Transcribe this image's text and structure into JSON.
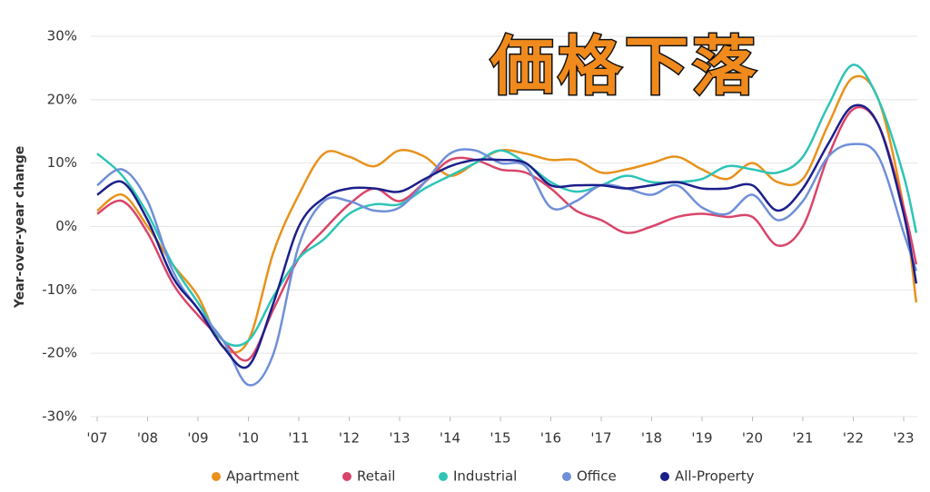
{
  "chart_data": {
    "type": "line",
    "annotation": "価格下落",
    "y_label": "Year-over-year change",
    "x": [
      2007,
      2007.5,
      2008,
      2008.5,
      2009,
      2009.5,
      2010,
      2010.5,
      2011,
      2011.5,
      2012,
      2012.5,
      2013,
      2013.5,
      2014,
      2014.5,
      2015,
      2015.5,
      2016,
      2016.5,
      2017,
      2017.5,
      2018,
      2018.5,
      2019,
      2019.5,
      2020,
      2020.5,
      2021,
      2021.5,
      2022,
      2022.5,
      2023,
      2023.25
    ],
    "series": [
      {
        "name": "Apartment",
        "color": "#e8921c",
        "values": [
          2.5,
          5,
          0,
          -6,
          -11,
          -19,
          -18,
          -4,
          5,
          11.5,
          11,
          9.5,
          12,
          11,
          8,
          10,
          12,
          11.5,
          10.5,
          10.5,
          8.5,
          9,
          10,
          11,
          9,
          7.5,
          10,
          7,
          7.5,
          16,
          23.5,
          20,
          3,
          -12
        ]
      },
      {
        "name": "Retail",
        "color": "#d9456a",
        "values": [
          2,
          4,
          -1,
          -9,
          -14,
          -18,
          -21,
          -13,
          -5,
          -0.5,
          3.5,
          6,
          4,
          7,
          10.5,
          10.5,
          9,
          8.5,
          6,
          2.5,
          1,
          -1,
          0,
          1.5,
          2,
          1.5,
          1.5,
          -3,
          0,
          11,
          18.5,
          16,
          3,
          -6
        ]
      },
      {
        "name": "Industrial",
        "color": "#2ec4b6",
        "values": [
          11.5,
          8,
          2,
          -6,
          -12,
          -18,
          -18,
          -11,
          -5,
          -2,
          2,
          3.5,
          3.5,
          6,
          8,
          10,
          12,
          10,
          7,
          5.5,
          6.5,
          8,
          7,
          7,
          7.5,
          9.5,
          9,
          8.5,
          11,
          19,
          25.5,
          20,
          8,
          -1
        ]
      },
      {
        "name": "Office",
        "color": "#6f8fd8",
        "values": [
          6.5,
          9,
          4,
          -7,
          -13,
          -18,
          -25,
          -20,
          -3,
          4,
          4,
          2.5,
          3,
          7,
          11.5,
          12,
          10,
          9.5,
          3,
          4,
          6.5,
          6,
          5,
          6.5,
          3,
          2,
          5,
          1,
          4,
          11,
          13,
          11,
          -1,
          -7
        ]
      },
      {
        "name": "All-Property",
        "color": "#1b1f8a",
        "values": [
          5,
          7,
          1,
          -8,
          -13,
          -19,
          -22,
          -12,
          0,
          4.5,
          6,
          6,
          5.5,
          7.5,
          9.5,
          10.5,
          10.5,
          10,
          6.5,
          6.5,
          6.5,
          6,
          6.5,
          7,
          6,
          6,
          6.5,
          2.5,
          6,
          13,
          19,
          16,
          2,
          -9
        ]
      }
    ],
    "xlim": [
      2007,
      2023.27
    ],
    "xticks": [
      {
        "value": 2007,
        "label": "'07"
      },
      {
        "value": 2008,
        "label": "'08"
      },
      {
        "value": 2009,
        "label": "'09"
      },
      {
        "value": 2010,
        "label": "'10"
      },
      {
        "value": 2011,
        "label": "'11"
      },
      {
        "value": 2012,
        "label": "'12"
      },
      {
        "value": 2013,
        "label": "'13"
      },
      {
        "value": 2014,
        "label": "'14"
      },
      {
        "value": 2015,
        "label": "'15"
      },
      {
        "value": 2016,
        "label": "'16"
      },
      {
        "value": 2017,
        "label": "'17"
      },
      {
        "value": 2018,
        "label": "'18"
      },
      {
        "value": 2019,
        "label": "'19"
      },
      {
        "value": 2020,
        "label": "'20"
      },
      {
        "value": 2021,
        "label": "'21"
      },
      {
        "value": 2022,
        "label": "'22"
      },
      {
        "value": 2023,
        "label": "'23"
      }
    ],
    "ylim": [
      -30,
      30
    ],
    "yticks": [
      {
        "value": -30,
        "label": "-30%"
      },
      {
        "value": -20,
        "label": "-20%"
      },
      {
        "value": -10,
        "label": "-10%"
      },
      {
        "value": 0,
        "label": "0%"
      },
      {
        "value": 10,
        "label": "10%"
      },
      {
        "value": 20,
        "label": "20%"
      },
      {
        "value": 30,
        "label": "30%"
      }
    ],
    "grid": true,
    "legend": "bottom"
  }
}
